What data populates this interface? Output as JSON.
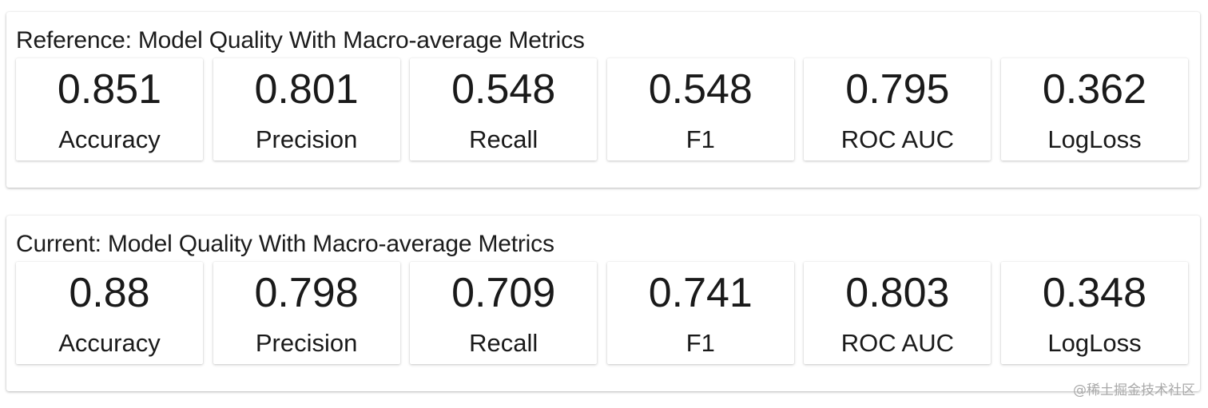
{
  "reference": {
    "title": "Reference: Model Quality With Macro-average Metrics",
    "metrics": [
      {
        "value": "0.851",
        "label": "Accuracy"
      },
      {
        "value": "0.801",
        "label": "Precision"
      },
      {
        "value": "0.548",
        "label": "Recall"
      },
      {
        "value": "0.548",
        "label": "F1"
      },
      {
        "value": "0.795",
        "label": "ROC AUC"
      },
      {
        "value": "0.362",
        "label": "LogLoss"
      }
    ]
  },
  "current": {
    "title": "Current: Model Quality With Macro-average Metrics",
    "metrics": [
      {
        "value": "0.88",
        "label": "Accuracy"
      },
      {
        "value": "0.798",
        "label": "Precision"
      },
      {
        "value": "0.709",
        "label": "Recall"
      },
      {
        "value": "0.741",
        "label": "F1"
      },
      {
        "value": "0.803",
        "label": "ROC AUC"
      },
      {
        "value": "0.348",
        "label": "LogLoss"
      }
    ]
  },
  "watermark": "@稀土掘金技术社区"
}
